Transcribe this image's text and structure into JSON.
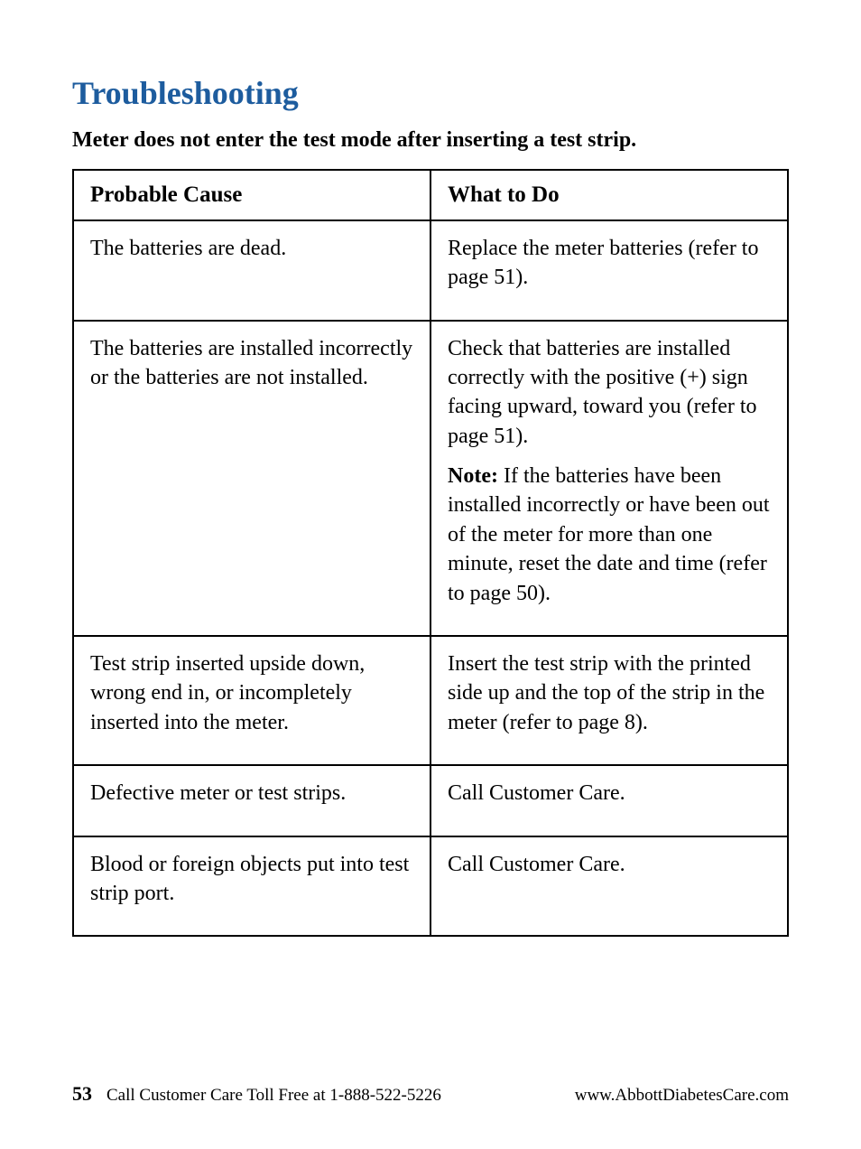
{
  "title": "Troubleshooting",
  "title_color": "#1d5c9e",
  "subtitle": "Meter does not enter the test mode after inserting a test strip.",
  "table": {
    "border_color": "#000000",
    "header_fontsize": 25,
    "cell_fontsize": 24,
    "columns": [
      "Probable Cause",
      "What to Do"
    ],
    "rows": [
      {
        "cause": "The batteries are dead.",
        "action": "Replace the meter batteries (refer to page 51)."
      },
      {
        "cause": "The batteries are installed incorrectly or the batteries are not installed.",
        "action_para1": "Check that batteries are installed correctly with the positive (+) sign facing upward, toward you (refer to page 51).",
        "note_label": "Note:",
        "note_text": " If the batteries have been installed incorrectly or have been out of the meter for more than one minute, reset the date and time (refer to page 50)."
      },
      {
        "cause": "Test strip inserted upside down, wrong end in, or incompletely inserted into the meter.",
        "action": "Insert the test strip with the printed side up and the top of the strip in the meter (refer to page 8)."
      },
      {
        "cause": "Defective meter or test strips.",
        "action": "Call Customer Care."
      },
      {
        "cause": "Blood or foreign objects put into test strip port.",
        "action": "Call Customer Care."
      }
    ]
  },
  "footer": {
    "page_number": "53",
    "care_text": "Call Customer Care Toll Free at 1-888-522-5226",
    "url": "www.AbbottDiabetesCare.com"
  }
}
